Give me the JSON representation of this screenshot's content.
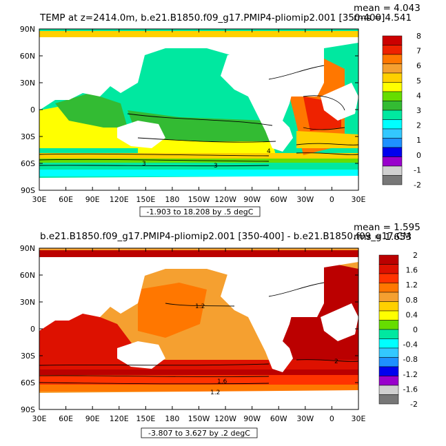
{
  "chart_data": [
    {
      "type": "heatmap",
      "title": "TEMP at z=2414.0m, b.e21.B1850.f09_g17.PMIP4-pliomip2.001 [350-400]",
      "stats": {
        "mean": "mean = 4.043",
        "rms": "rms = 4.541"
      },
      "range_label": "-1.903 to 18.208 by .5 degC",
      "x_ticks": [
        "30E",
        "60E",
        "90E",
        "120E",
        "150E",
        "180",
        "150W",
        "120W",
        "90W",
        "60W",
        "30W",
        "0",
        "30E"
      ],
      "y_ticks": [
        "90N",
        "60N",
        "30N",
        "0",
        "30S",
        "60S",
        "90S"
      ],
      "colorbar": {
        "labels": [
          "8",
          "7",
          "6",
          "5",
          "4",
          "3",
          "2",
          "1",
          "0",
          "-1",
          "-2"
        ],
        "colors": [
          "#cc0000",
          "#ee2200",
          "#ff7700",
          "#f5a030",
          "#ffd000",
          "#ffff00",
          "#66dd00",
          "#33bb33",
          "#00e8a0",
          "#00ffff",
          "#33c8ff",
          "#1e90ff",
          "#0000ee",
          "#9900cc",
          "#d0d0d0",
          "#777777"
        ]
      },
      "contour_labels": [
        "4",
        "3",
        "3"
      ],
      "colors": {
        "ocean_base": "#00e8a0",
        "land": "#ffffff"
      }
    },
    {
      "type": "heatmap",
      "title": "b.e21.B1850.f09_g17.PMIP4-pliomip2.001 [350-400] - b.e21.B1850.f09_g17.CM",
      "stats": {
        "mean": "mean = 1.595",
        "rms": "rms = 1.653"
      },
      "range_label": "-3.807 to 3.627 by .2 degC",
      "x_ticks": [
        "30E",
        "60E",
        "90E",
        "120E",
        "150E",
        "180",
        "150W",
        "120W",
        "90W",
        "60W",
        "30W",
        "0",
        "30E"
      ],
      "y_ticks": [
        "90N",
        "60N",
        "30N",
        "0",
        "30S",
        "60S",
        "90S"
      ],
      "colorbar": {
        "labels": [
          "2",
          "1.6",
          "1.2",
          "0.8",
          "0.4",
          "0",
          "-0.4",
          "-0.8",
          "-1.2",
          "-1.6",
          "-2"
        ],
        "colors": [
          "#bb0000",
          "#dd1100",
          "#ff3300",
          "#ff7700",
          "#f5a030",
          "#ffd000",
          "#ffff00",
          "#66dd00",
          "#00e8a0",
          "#00ffff",
          "#33c8ff",
          "#1e90ff",
          "#0000ee",
          "#9900cc",
          "#d0d0d0",
          "#777777"
        ]
      },
      "contour_labels": [
        "1.2",
        "2",
        "1.6",
        "1.2"
      ],
      "colors": {
        "ocean_base": "#f5a030",
        "land": "#ffffff"
      }
    }
  ]
}
